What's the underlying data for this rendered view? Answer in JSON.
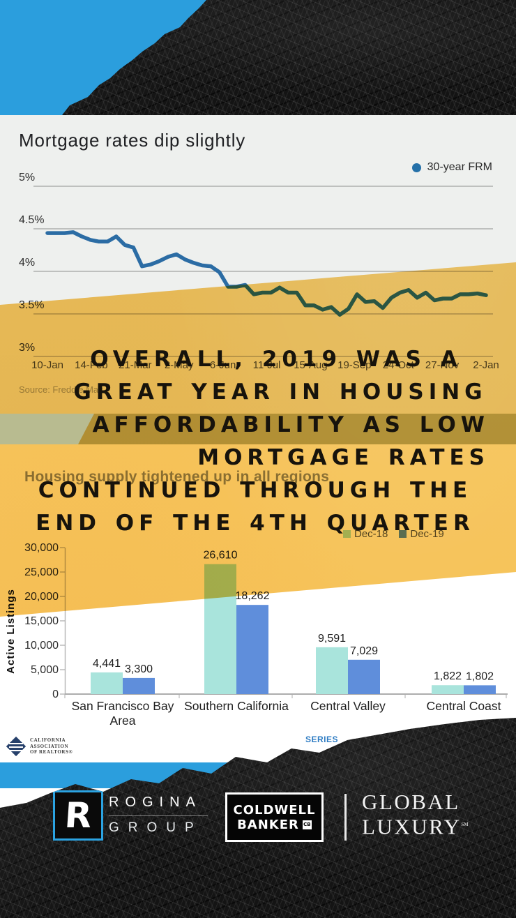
{
  "colors": {
    "brand_blue": "#2b9edd",
    "overlay_yellow": "#f6c45c",
    "line_blue": "#2b6ca4",
    "legend_dot_blue": "#2470a8",
    "bar_teal": "#a9e4dc",
    "bar_blue": "#5f8edb",
    "sage_band": "#b8bb90",
    "paper_black": "#141414"
  },
  "quote": {
    "lines": [
      "OVERALL, 2019 WAS A",
      "GREAT YEAR IN HOUSING",
      "AFFORDABILITY AS LOW",
      "MORTGAGE RATES",
      "CONTINUED THROUGH THE",
      "END OF THE 4TH QUARTER"
    ]
  },
  "footer": {
    "car_logo_lines": [
      "CALIFORNIA",
      "ASSOCIATION",
      "OF REALTORS®"
    ],
    "series_label": "SERIES",
    "rogina": {
      "monogram": "R",
      "line1": "ROGINA",
      "line2": "GROUP"
    },
    "coldwell": {
      "line1": "COLDWELL",
      "line2": "BANKER",
      "monogram": "CB"
    },
    "global": {
      "line1": "GLOBAL",
      "line2": "LUXURY",
      "sm": "SM"
    }
  },
  "chart_data": [
    {
      "type": "line",
      "title": "Mortgage rates dip slightly",
      "legend": [
        "30-year FRM"
      ],
      "legend_position": "top-right",
      "source": "Source: Freddie Mac",
      "frequency": "weekly",
      "x_tick_labels": [
        "10-Jan",
        "14-Feb",
        "21-Mar",
        "2-May",
        "6-Jun",
        "11-Jul",
        "15-Aug",
        "19-Sep",
        "24-Oct",
        "27-Nov",
        "2-Jan"
      ],
      "y_tick_labels": [
        "5%",
        "4.5%",
        "4%",
        "3.5%",
        "3%"
      ],
      "ylim": [
        3,
        5
      ],
      "grid": true,
      "series": [
        {
          "name": "30-year FRM",
          "values": [
            4.45,
            4.45,
            4.45,
            4.46,
            4.41,
            4.37,
            4.35,
            4.35,
            4.41,
            4.31,
            4.28,
            4.06,
            4.08,
            4.12,
            4.17,
            4.2,
            4.14,
            4.1,
            4.07,
            4.06,
            3.99,
            3.82,
            3.82,
            3.84,
            3.73,
            3.75,
            3.75,
            3.81,
            3.75,
            3.75,
            3.6,
            3.6,
            3.55,
            3.58,
            3.49,
            3.56,
            3.73,
            3.64,
            3.65,
            3.57,
            3.69,
            3.75,
            3.78,
            3.69,
            3.75,
            3.66,
            3.68,
            3.68,
            3.73,
            3.73,
            3.74,
            3.72
          ]
        }
      ]
    },
    {
      "type": "bar",
      "title": "Housing supply tightened up in all regions",
      "ylabel": "Active Listings",
      "legend_position": "top-right",
      "ylim": [
        0,
        30000
      ],
      "y_tick_step": 5000,
      "y_tick_labels": [
        "30,000",
        "25,000",
        "20,000",
        "15,000",
        "10,000",
        "5,000",
        "0"
      ],
      "categories": [
        "San Francisco Bay Area",
        "Southern California",
        "Central Valley",
        "Central Coast"
      ],
      "category_lines": [
        [
          "San Francisco Bay",
          "Area"
        ],
        [
          "Southern California"
        ],
        [
          "Central Valley"
        ],
        [
          "Central Coast"
        ]
      ],
      "series": [
        {
          "name": "Dec-18",
          "values": [
            4441,
            26610,
            9591,
            1822
          ]
        },
        {
          "name": "Dec-19",
          "values": [
            3300,
            18262,
            7029,
            1802
          ]
        }
      ]
    }
  ]
}
